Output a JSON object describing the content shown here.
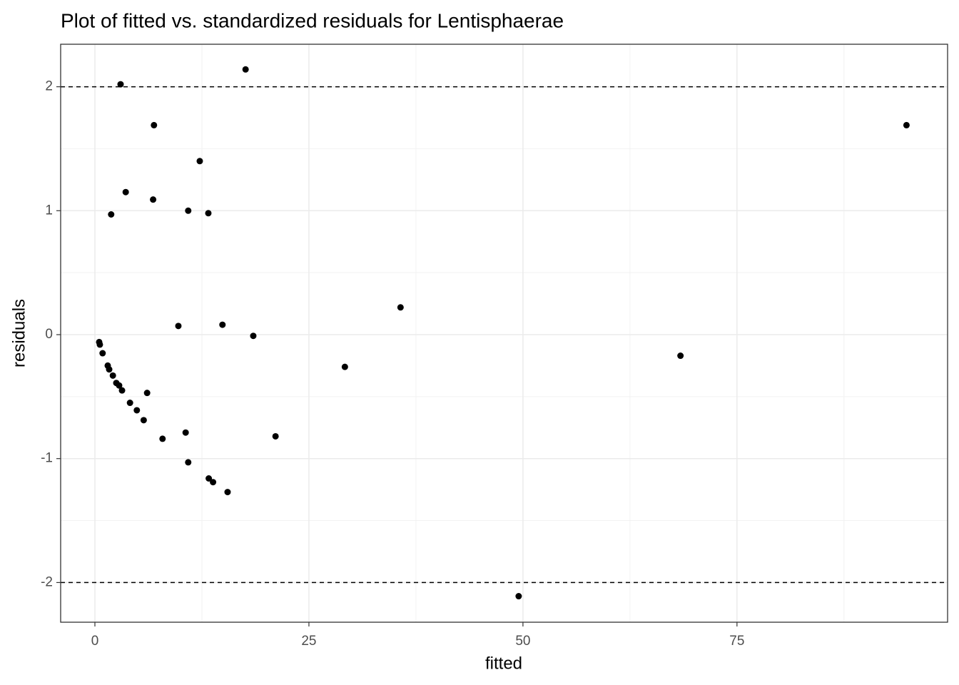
{
  "chart_data": {
    "type": "scatter",
    "title": "Plot of fitted vs. standardized residuals for Lentisphaerae",
    "x_label": "fitted",
    "y_label": "residuals",
    "x": [
      3.0,
      17.6,
      6.9,
      94.8,
      12.25,
      3.6,
      6.8,
      1.9,
      10.9,
      13.25,
      35.7,
      9.75,
      14.9,
      18.5,
      0.5,
      0.58,
      0.9,
      1.5,
      1.67,
      2.1,
      2.5,
      2.83,
      3.17,
      6.1,
      4.1,
      4.9,
      5.7,
      7.9,
      10.6,
      21.1,
      29.2,
      68.4,
      10.9,
      13.3,
      13.8,
      15.5,
      49.5
    ],
    "values": [
      2.02,
      2.14,
      1.69,
      1.69,
      1.4,
      1.15,
      1.09,
      0.97,
      1.0,
      0.98,
      0.22,
      0.07,
      0.08,
      -0.01,
      -0.06,
      -0.08,
      -0.15,
      -0.25,
      -0.28,
      -0.33,
      -0.39,
      -0.41,
      -0.45,
      -0.47,
      -0.55,
      -0.61,
      -0.69,
      -0.84,
      -0.79,
      -0.82,
      -0.26,
      -0.17,
      -1.03,
      -1.16,
      -1.19,
      -1.27,
      -2.11
    ],
    "color": "#000000",
    "xlim": [
      -4,
      99.6
    ],
    "xticks": [
      0,
      25,
      50,
      75
    ],
    "ylim": [
      -2.32,
      2.343
    ],
    "yticks": [
      -2,
      -1,
      0,
      1,
      2
    ],
    "hlines": [
      -2,
      2
    ],
    "grid": true
  }
}
